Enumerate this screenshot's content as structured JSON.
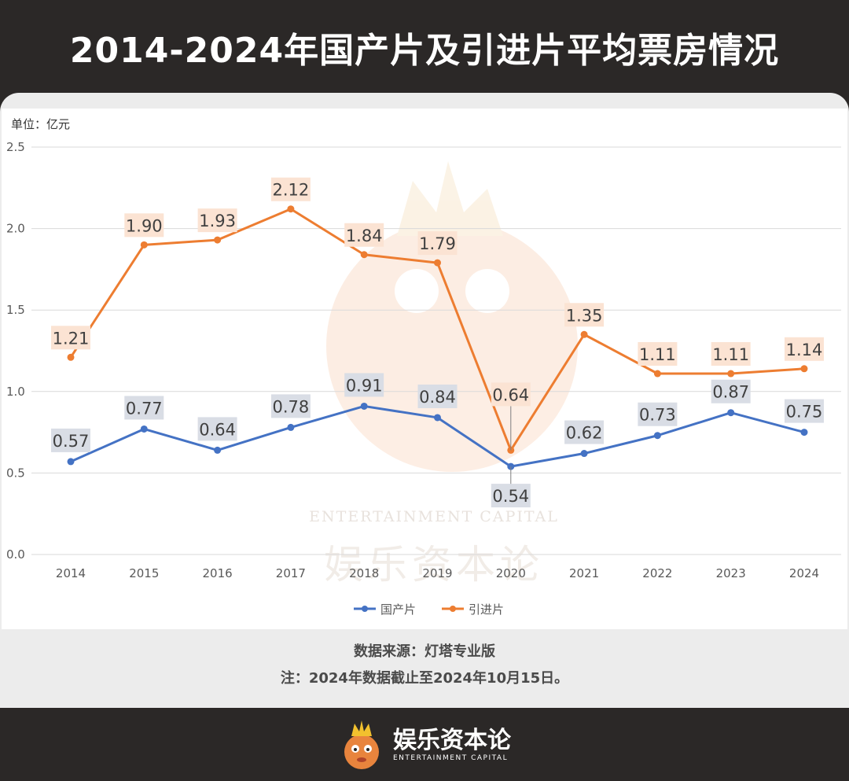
{
  "header": {
    "title": "2014-2024年国产片及引进片平均票房情况"
  },
  "chart_data": {
    "type": "line",
    "unit_label": "单位：亿元",
    "categories": [
      "2014",
      "2015",
      "2016",
      "2017",
      "2018",
      "2019",
      "2020",
      "2021",
      "2022",
      "2023",
      "2024"
    ],
    "series": [
      {
        "name": "国产片",
        "color": "#4472c4",
        "label_bg": "#d9dde5",
        "values": [
          0.57,
          0.77,
          0.64,
          0.78,
          0.91,
          0.84,
          0.54,
          0.62,
          0.73,
          0.87,
          0.75
        ],
        "labels": [
          "0.57",
          "0.77",
          "0.64",
          "0.78",
          "0.91",
          "0.84",
          "0.54",
          "0.62",
          "0.73",
          "0.87",
          "0.75"
        ]
      },
      {
        "name": "引进片",
        "color": "#ed7d31",
        "label_bg": "#fbe3d3",
        "values": [
          1.21,
          1.9,
          1.93,
          2.12,
          1.84,
          1.79,
          0.64,
          1.35,
          1.11,
          1.11,
          1.14
        ],
        "labels": [
          "1.21",
          "1.90",
          "1.93",
          "2.12",
          "1.84",
          "1.79",
          "0.64",
          "1.35",
          "1.11",
          "1.11",
          "1.14"
        ]
      }
    ],
    "y_ticks": [
      "0.0",
      "0.5",
      "1.0",
      "1.5",
      "2.0",
      "2.5"
    ],
    "ylim": [
      0,
      2.5
    ],
    "grid": true,
    "legend_position": "bottom"
  },
  "watermark": {
    "en": "ENTERTAINMENT CAPITAL",
    "cn": "娱乐资本论"
  },
  "footer": {
    "source": "数据来源：灯塔专业版",
    "note": "注：2024年数据截止至2024年10月15日。"
  },
  "brand": {
    "name": "娱乐资本论",
    "sub": "ENTERTAINMENT CAPITAL"
  }
}
